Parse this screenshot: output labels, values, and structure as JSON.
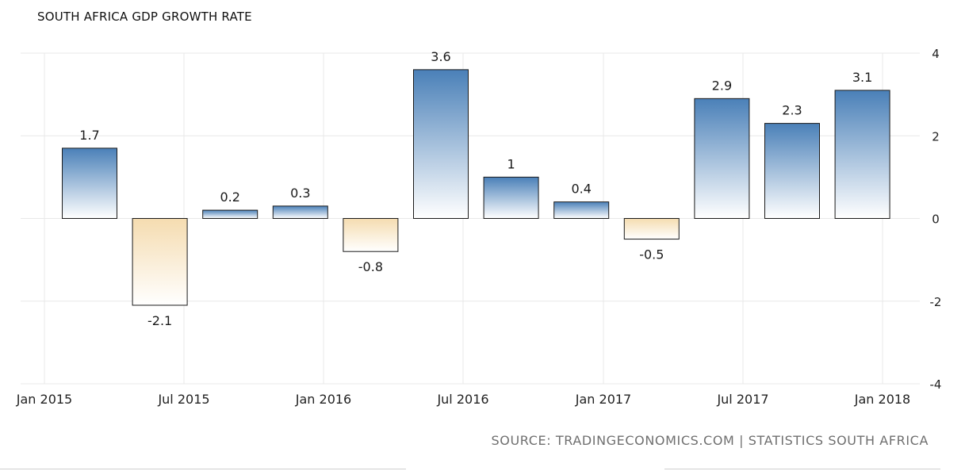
{
  "chart_data": {
    "type": "bar",
    "title": "SOUTH AFRICA GDP GROWTH RATE",
    "source": "SOURCE: TRADINGECONOMICS.COM | STATISTICS SOUTH AFRICA",
    "categories": [
      "2015-Q1",
      "2015-Q2",
      "2015-Q3",
      "2015-Q4",
      "2016-Q1",
      "2016-Q2",
      "2016-Q3",
      "2016-Q4",
      "2017-Q1",
      "2017-Q2",
      "2017-Q3",
      "2017-Q4"
    ],
    "values": [
      1.7,
      -2.1,
      0.2,
      0.3,
      -0.8,
      3.6,
      1,
      0.4,
      -0.5,
      2.9,
      2.3,
      3.1
    ],
    "data_labels": [
      "1.7",
      "-2.1",
      "0.2",
      "0.3",
      "-0.8",
      "3.6",
      "1",
      "0.4",
      "-0.5",
      "2.9",
      "2.3",
      "3.1"
    ],
    "x_ticks": [
      "Jan 2015",
      "Jul 2015",
      "Jan 2016",
      "Jul 2016",
      "Jan 2017",
      "Jul 2017",
      "Jan 2018"
    ],
    "y_ticks": [
      "4",
      "2",
      "0",
      "-2",
      "-4"
    ],
    "y_tick_values": [
      4,
      2,
      0,
      -2,
      -4
    ],
    "ylim": [
      -4,
      4
    ],
    "y_axis_side": "right",
    "grid": true,
    "xlabel": "",
    "ylabel": "",
    "colors": {
      "positive_top": "#4a80b8",
      "positive_bottom": "#ffffff",
      "negative_top": "#f5dcb0",
      "negative_bottom": "#ffffff",
      "bar_stroke": "#1a1a1a",
      "grid": "#e8e8e8"
    }
  }
}
